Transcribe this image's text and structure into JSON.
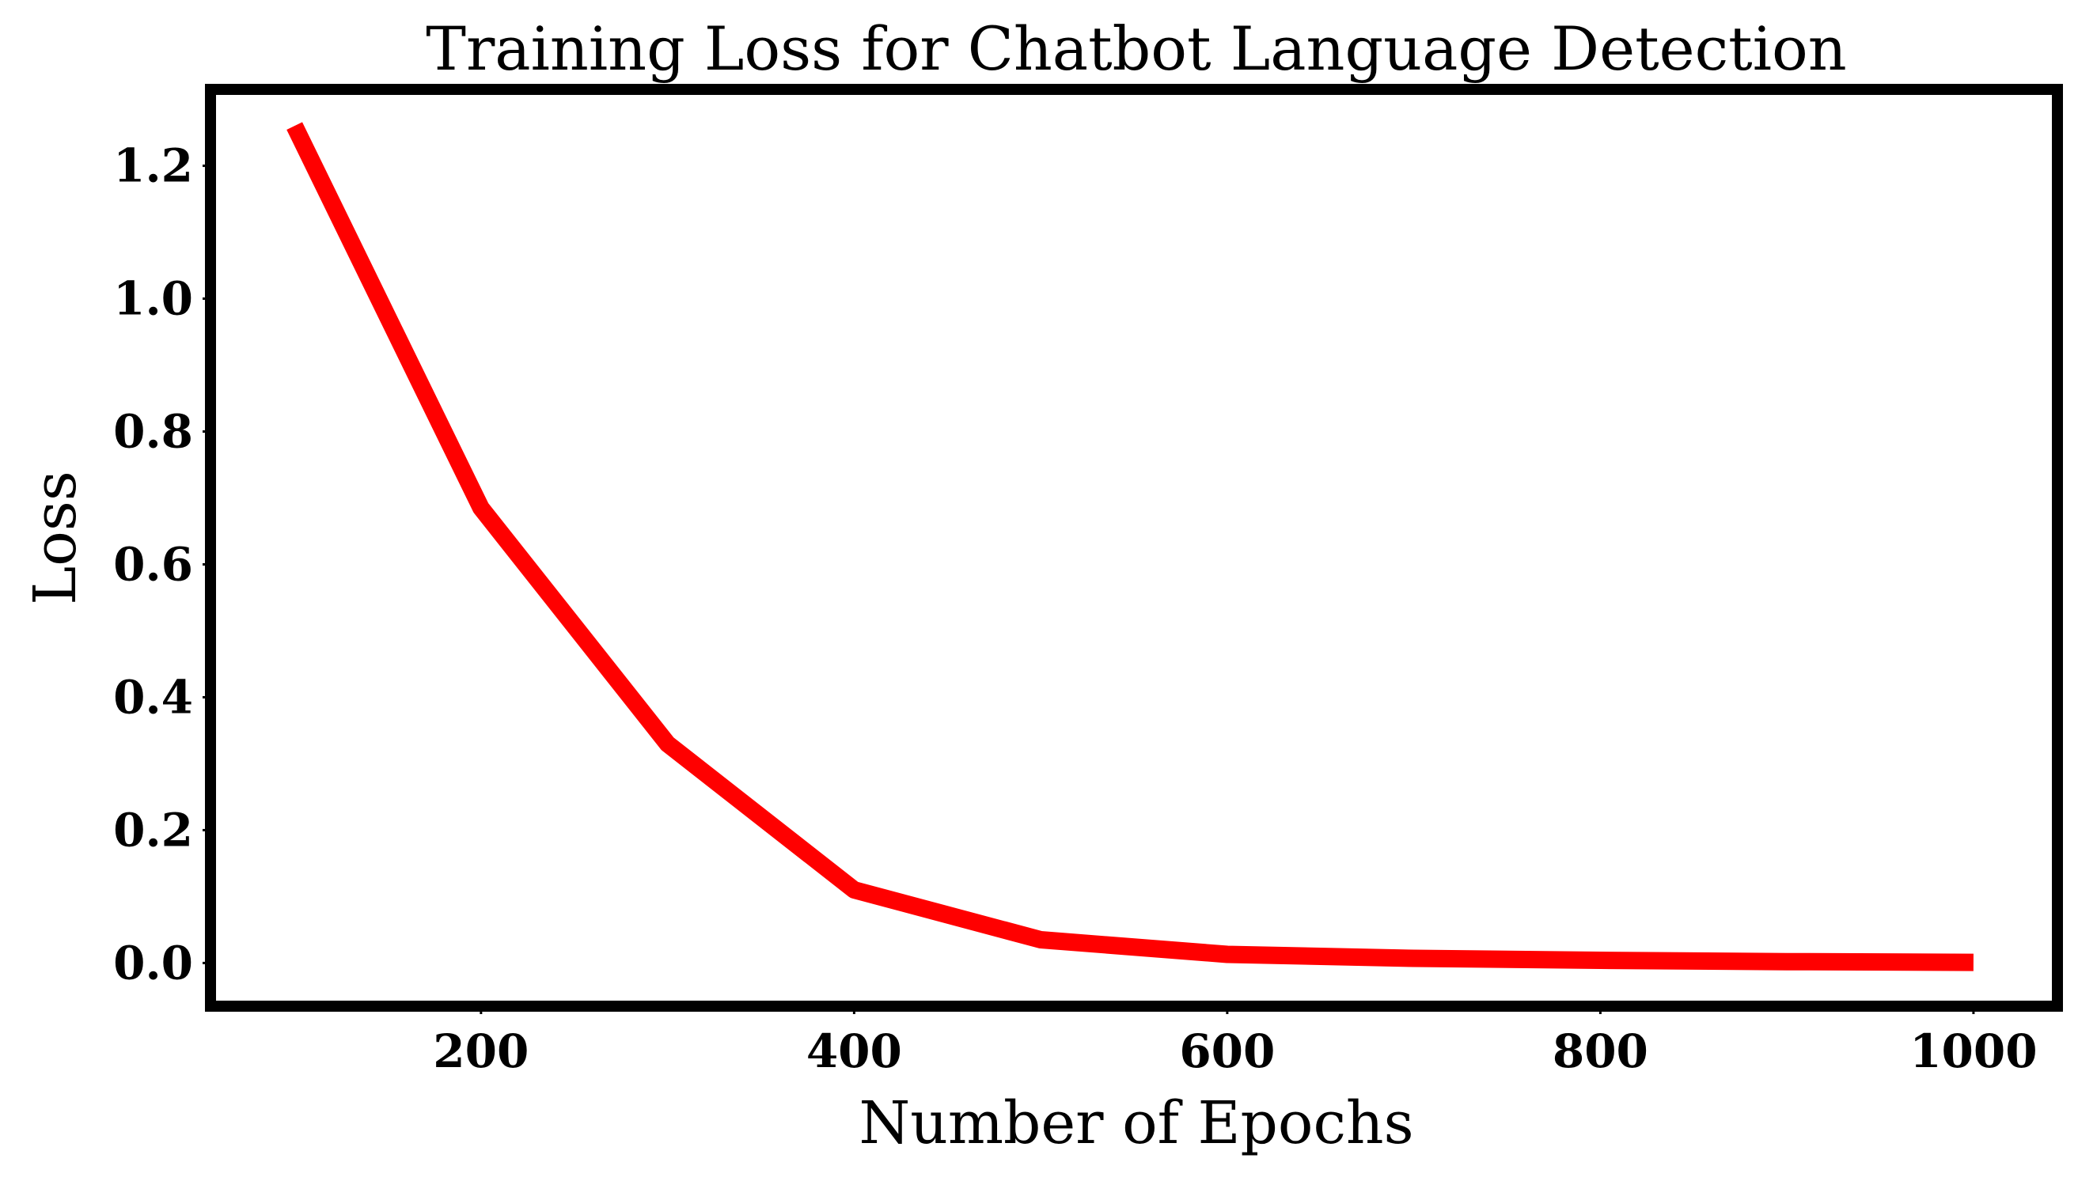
{
  "chart_data": {
    "type": "line",
    "title": "Training Loss for Chatbot Language Detection",
    "xlabel": "Number of Epochs",
    "ylabel": "Loss",
    "x": [
      100,
      200,
      300,
      400,
      500,
      600,
      700,
      800,
      900,
      1000
    ],
    "series": [
      {
        "values": [
          1.26,
          0.685,
          0.33,
          0.11,
          0.035,
          0.013,
          0.007,
          0.004,
          0.002,
          0.001
        ],
        "color": "#ff0000"
      }
    ],
    "xlim": [
      55,
      1045
    ],
    "ylim": [
      -0.065,
      1.315
    ],
    "xticks": [
      200,
      400,
      600,
      800,
      1000
    ],
    "xtick_labels": [
      "200",
      "400",
      "600",
      "800",
      "1000"
    ],
    "yticks": [
      0.0,
      0.2,
      0.4,
      0.6,
      0.8,
      1.0,
      1.2
    ],
    "ytick_labels": [
      "0.0",
      "0.2",
      "0.4",
      "0.6",
      "0.8",
      "1.0",
      "1.2"
    ],
    "grid": false,
    "legend": "none"
  }
}
